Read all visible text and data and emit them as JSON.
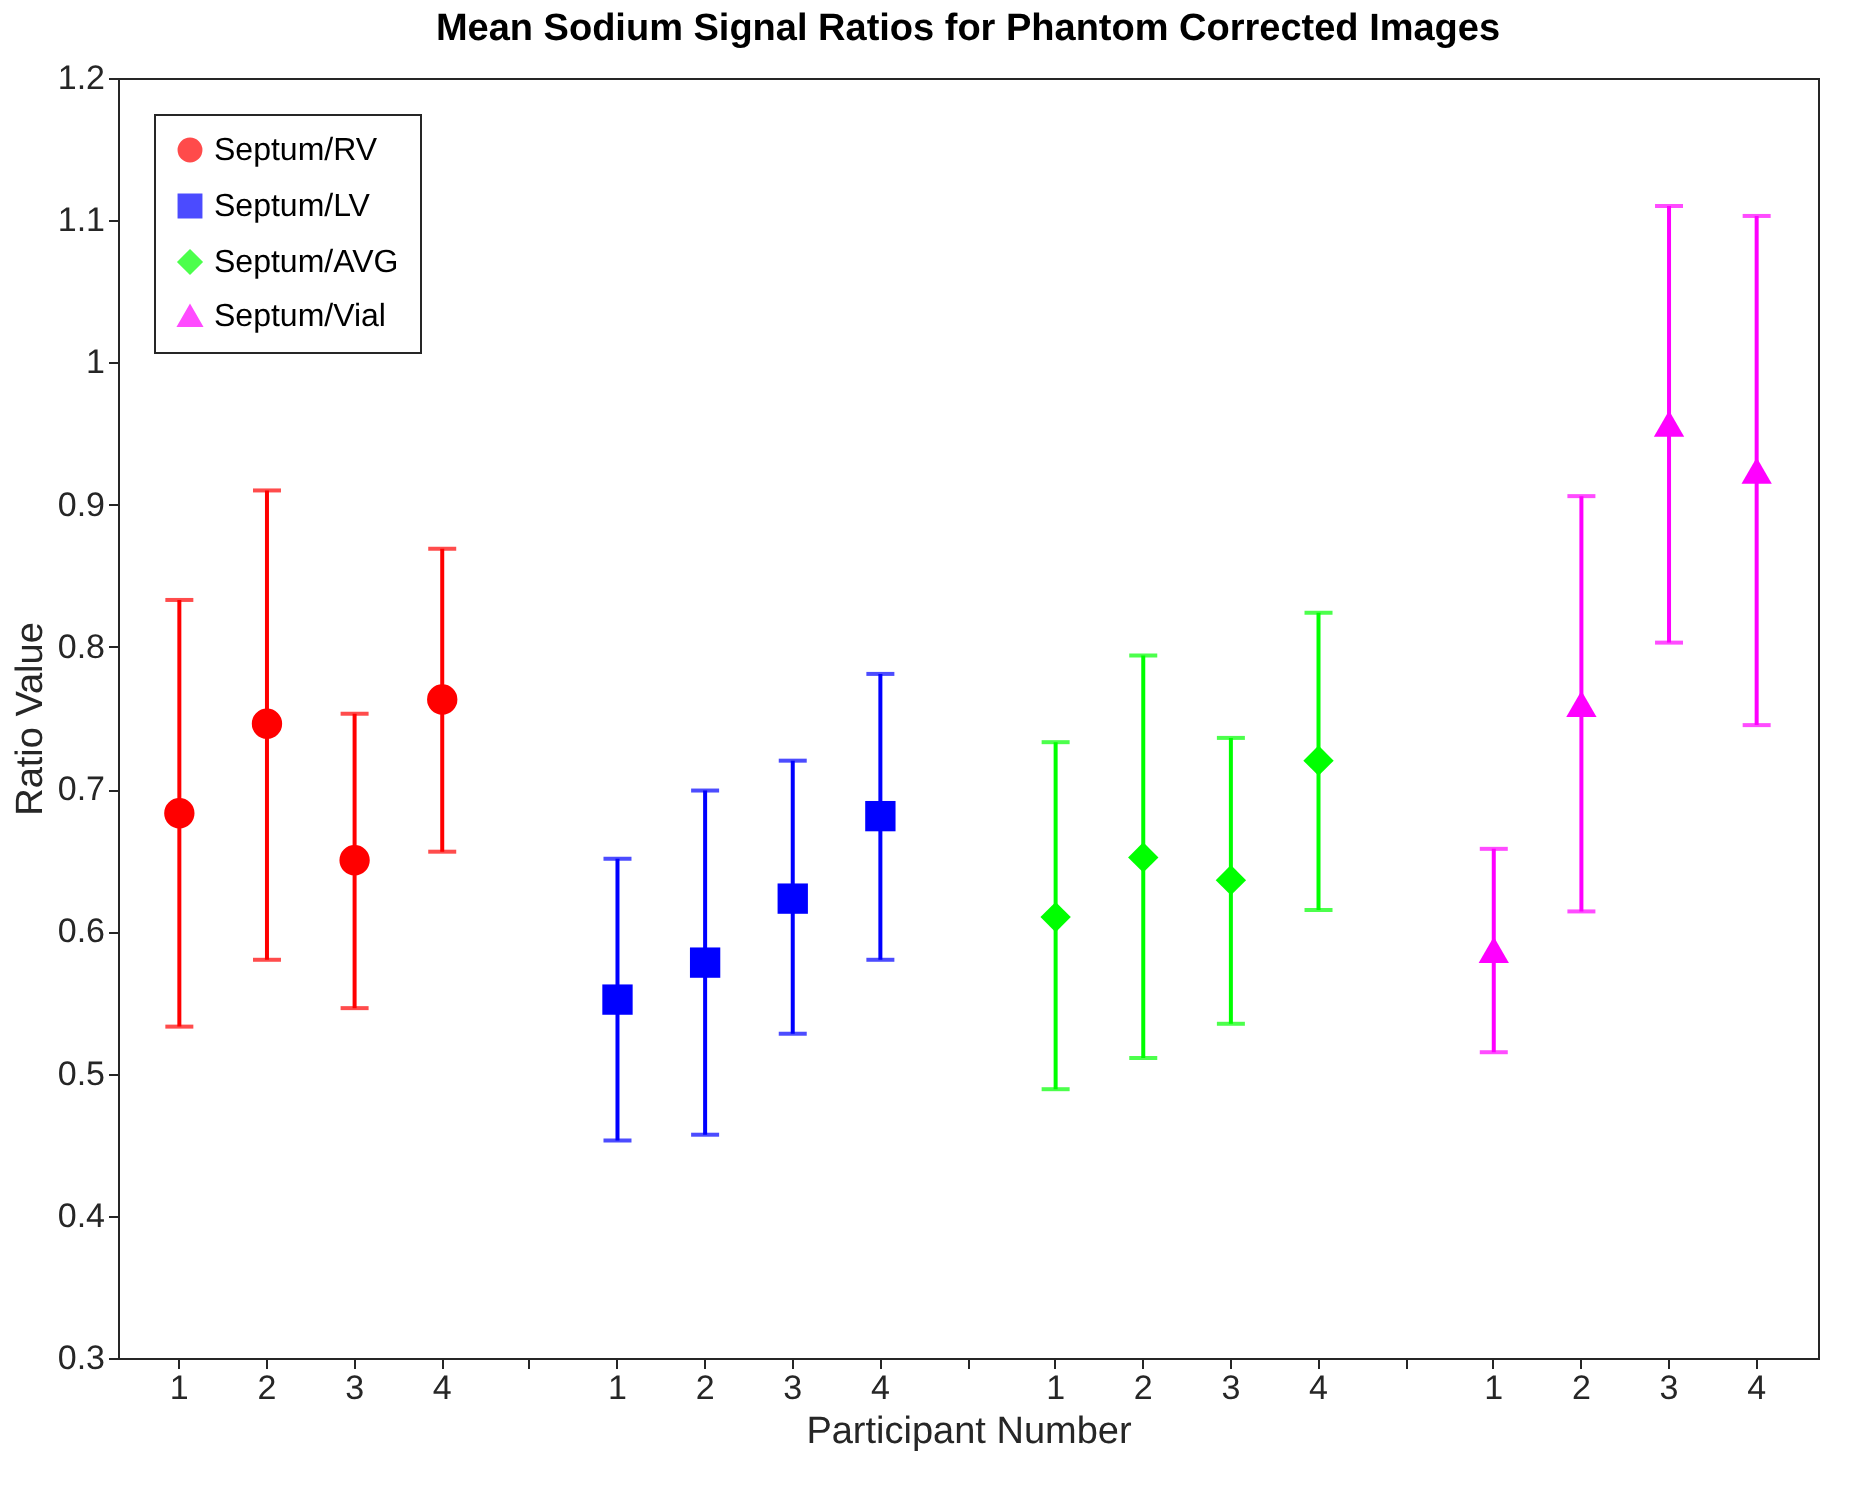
{
  "chart_data": {
    "type": "scatter",
    "title": "Mean Sodium Signal Ratios for Phantom Corrected Images",
    "xlabel": "Participant Number",
    "ylabel": "Ratio Value",
    "categories": [
      "1",
      "2",
      "3",
      "4",
      null,
      "1",
      "2",
      "3",
      "4",
      null,
      "1",
      "2",
      "3",
      "4",
      null,
      "1",
      "2",
      "3",
      "4"
    ],
    "ylim": [
      0.3,
      1.2
    ],
    "yticks": [
      0.3,
      0.4,
      0.5,
      0.6,
      0.7,
      0.8,
      0.9,
      1,
      1.1,
      1.2
    ],
    "grid": false,
    "legend": "top left",
    "series": [
      {
        "name": "Septum/RV",
        "color": "#ff0000",
        "marker": "circle",
        "values": [
          0.683,
          0.746,
          0.65,
          0.763,
          null,
          null,
          null,
          null,
          null,
          null,
          null,
          null,
          null,
          null,
          null,
          null,
          null,
          null,
          null
        ],
        "errors": [
          [
            0.533,
            0.833
          ],
          [
            0.58,
            0.91
          ],
          [
            0.546,
            0.753
          ],
          [
            0.656,
            0.869
          ],
          null,
          null,
          null,
          null,
          null,
          null,
          null,
          null,
          null,
          null,
          null,
          null,
          null,
          null,
          null
        ]
      },
      {
        "name": "Septum/LV",
        "color": "#0000ff",
        "marker": "square",
        "values": [
          null,
          null,
          null,
          null,
          null,
          0.552,
          0.578,
          0.623,
          0.681,
          null,
          null,
          null,
          null,
          null,
          null,
          null,
          null,
          null,
          null
        ],
        "errors": [
          null,
          null,
          null,
          null,
          null,
          [
            0.453,
            0.651
          ],
          [
            0.457,
            0.699
          ],
          [
            0.528,
            0.72
          ],
          [
            0.58,
            0.781
          ],
          null,
          null,
          null,
          null,
          null,
          null,
          null,
          null,
          null,
          null
        ]
      },
      {
        "name": "Septum/AVG",
        "color": "#00ff00",
        "marker": "diamond",
        "values": [
          null,
          null,
          null,
          null,
          null,
          null,
          null,
          null,
          null,
          null,
          0.61,
          0.652,
          0.636,
          0.72,
          null,
          null,
          null,
          null,
          null
        ],
        "errors": [
          null,
          null,
          null,
          null,
          null,
          null,
          null,
          null,
          null,
          null,
          [
            0.489,
            0.733
          ],
          [
            0.511,
            0.794
          ],
          [
            0.535,
            0.736
          ],
          [
            0.615,
            0.824
          ],
          null,
          null,
          null,
          null,
          null
        ]
      },
      {
        "name": "Septum/Vial",
        "color": "#ff00ff",
        "marker": "triangle",
        "values": [
          null,
          null,
          null,
          null,
          null,
          null,
          null,
          null,
          null,
          null,
          null,
          null,
          null,
          null,
          null,
          0.587,
          0.76,
          0.957,
          0.924
        ],
        "errors": [
          null,
          null,
          null,
          null,
          null,
          null,
          null,
          null,
          null,
          null,
          null,
          null,
          null,
          null,
          null,
          [
            0.515,
            0.658
          ],
          [
            0.614,
            0.906
          ],
          [
            0.803,
            1.11
          ],
          [
            0.745,
            1.103
          ]
        ]
      }
    ]
  }
}
